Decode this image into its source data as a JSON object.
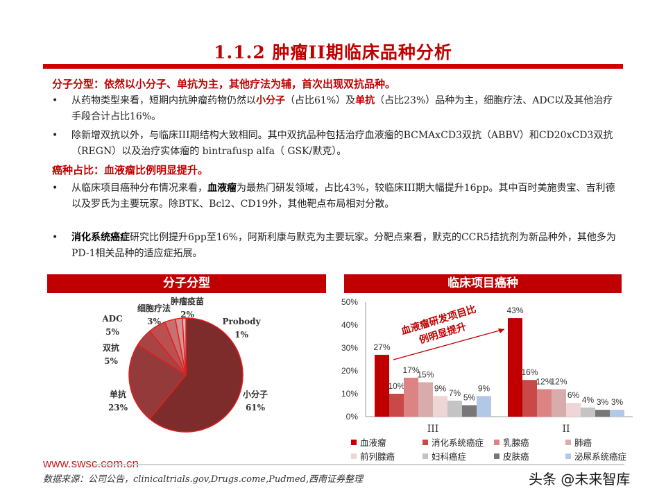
{
  "title": "1.1.2 肿瘤II期临床品种分析",
  "section1": {
    "heading": "分子分型：依然以小分子、单抗为主，其他疗法为辅，首次出现双抗品种。",
    "b1": {
      "t1": "从药物类型来看，短期内抗肿瘤药物仍然以",
      "h1": "小分子",
      "t2": "（占比61%）及",
      "h2": "单抗",
      "t3": "（占比23%）品种为主，细胞疗法、ADC以及其他治疗手段合计占比16%。"
    },
    "b2": "除新增双抗以外，与临床III期结构大致相同。其中双抗品种包括治疗血液瘤的BCMAxCD3双抗（ABBV）和CD20xCD3双抗（REGN）以及治疗实体瘤的 bintrafusp alfa（ GSK/默克）。"
  },
  "section2": {
    "heading": "癌种占比：血液瘤比例明显提升。",
    "b1": {
      "t1": "从临床项目癌种分布情况来看，",
      "h1": "血液瘤",
      "t2": "为最热门研发领域，占比43%，较临床III期大幅提升16pp。其中百时美施贵宝、吉利德以及罗氏为主要玩家。除BTK、Bcl2、CD19外，其他靶点布局相对分散。"
    },
    "b2": {
      "h1": "消化系统癌症",
      "t1": "研究比例提升6pp至16%，阿斯利康与默克为主要玩家。分靶点来看，默克的CCR5拮抗剂为新品种外，其他多为PD-1相关品种的适应症拓展。"
    }
  },
  "chart_data": [
    {
      "type": "pie",
      "title": "分子分型",
      "border_color": "#e02020",
      "slices": [
        {
          "label": "小分子",
          "value": 61,
          "display": "61%",
          "color": "#7e2b2b"
        },
        {
          "label": "单抗",
          "value": 23,
          "display": "23%",
          "color": "#953a3a"
        },
        {
          "label": "双抗",
          "value": 5,
          "display": "5%",
          "color": "#a94444"
        },
        {
          "label": "ADC",
          "value": 5,
          "display": "5%",
          "color": "#bb5050"
        },
        {
          "label": "细胞疗法",
          "value": 3,
          "display": "3%",
          "color": "#c87070"
        },
        {
          "label": "肿瘤疫苗",
          "value": 2,
          "display": "2%",
          "color": "#d89494"
        },
        {
          "label": "Probody",
          "value": 1,
          "display": "1%",
          "color": "#e8b8b8"
        }
      ]
    },
    {
      "type": "bar",
      "title": "临床项目癌种",
      "categories": [
        "III",
        "II"
      ],
      "ylim": [
        0,
        50
      ],
      "yticks": [
        "0%",
        "10%",
        "20%",
        "30%",
        "40%",
        "50%"
      ],
      "legend": "bottom",
      "annotation": [
        "血液瘤研发项目比",
        "例明显提升"
      ],
      "series": [
        {
          "name": "血液瘤",
          "values": [
            27,
            43
          ],
          "color": "#c00000"
        },
        {
          "name": "消化系统癌症",
          "values": [
            10,
            16
          ],
          "color": "#c94848"
        },
        {
          "name": "乳腺癌",
          "values": [
            17,
            12
          ],
          "color": "#dc8484"
        },
        {
          "name": "肺癌",
          "values": [
            15,
            12
          ],
          "color": "#d9acac"
        },
        {
          "name": "前列腺癌",
          "values": [
            9,
            6
          ],
          "color": "#eed6d6"
        },
        {
          "name": "妇科癌症",
          "values": [
            7,
            4
          ],
          "color": "#c4c4c4"
        },
        {
          "name": "皮肤癌",
          "values": [
            5,
            3
          ],
          "color": "#777777"
        },
        {
          "name": "泌尿系统癌症",
          "values": [
            9,
            3
          ],
          "color": "#b3c8e6"
        }
      ]
    }
  ],
  "footer": {
    "site": "www.swsc.com.cn",
    "source": "数据来源：公司公告，clinicaltrials.gov,Drugs.come,Pudmed,西南证券整理",
    "watermark": "头条 @未来智库"
  }
}
